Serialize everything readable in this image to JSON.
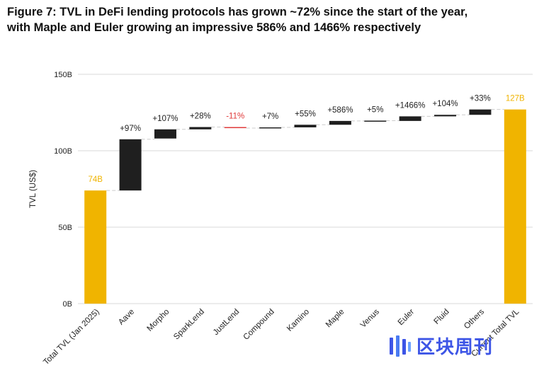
{
  "title": {
    "line1": "Figure 7: TVL in DeFi lending protocols has grown ~72% since the start of the year,",
    "line2": "with Maple and Euler growing an impressive 586% and 1466% respectively"
  },
  "watermark": {
    "text": "区块周刊"
  },
  "colors": {
    "total": "#f0b400",
    "increase": "#1f1f1f",
    "decrease": "#e03a3a",
    "grid": "#d9d9d9",
    "connector": "#cccccc",
    "text": "#222222",
    "total_label": "#f0b400",
    "negative_label": "#e03a3a"
  },
  "chart_data": {
    "type": "bar",
    "subtype": "waterfall",
    "ylabel": "TVL (US$)",
    "xlabel": "",
    "ylim": [
      0,
      150
    ],
    "yticks": [
      0,
      50,
      100,
      150
    ],
    "ytick_labels": [
      "0B",
      "50B",
      "100B",
      "150B"
    ],
    "grid": true,
    "bars": [
      {
        "category": "Total TVL (Jan 2025)",
        "kind": "total",
        "start": 0,
        "end": 74,
        "label": "74B"
      },
      {
        "category": "Aave",
        "kind": "increase",
        "start": 74,
        "end": 107.5,
        "label": "+97%"
      },
      {
        "category": "Morpho",
        "kind": "increase",
        "start": 108,
        "end": 114,
        "label": "+107%"
      },
      {
        "category": "SparkLend",
        "kind": "increase",
        "start": 114,
        "end": 115.5,
        "label": "+28%"
      },
      {
        "category": "JustLend",
        "kind": "decrease",
        "start": 115.5,
        "end": 114.8,
        "label": "-11%"
      },
      {
        "category": "Compound",
        "kind": "increase",
        "start": 114.8,
        "end": 115.3,
        "label": "+7%"
      },
      {
        "category": "Kamino",
        "kind": "increase",
        "start": 115.3,
        "end": 117,
        "label": "+55%"
      },
      {
        "category": "Maple",
        "kind": "increase",
        "start": 117,
        "end": 119.5,
        "label": "+586%"
      },
      {
        "category": "Venus",
        "kind": "increase",
        "start": 119.5,
        "end": 119.7,
        "label": "+5%"
      },
      {
        "category": "Euler",
        "kind": "increase",
        "start": 119.5,
        "end": 122.5,
        "label": "+1466%"
      },
      {
        "category": "Fluid",
        "kind": "increase",
        "start": 122.5,
        "end": 123.5,
        "label": "+104%"
      },
      {
        "category": "Others",
        "kind": "increase",
        "start": 123.5,
        "end": 127,
        "label": "+33%"
      },
      {
        "category": "Current Total TVL",
        "kind": "total",
        "start": 0,
        "end": 127,
        "label": "127B"
      }
    ]
  }
}
